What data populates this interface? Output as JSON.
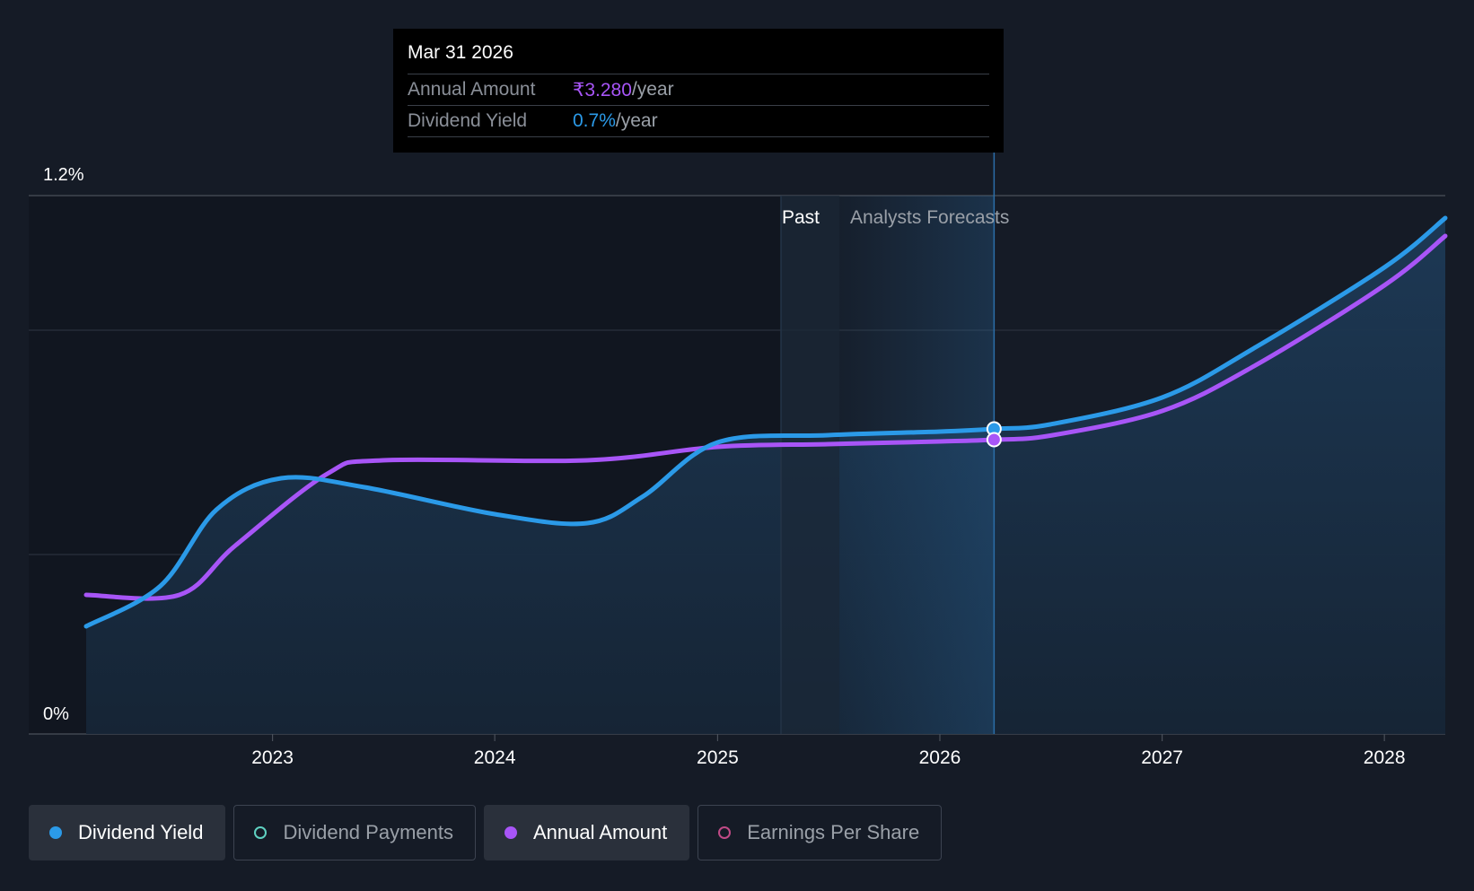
{
  "chart_data": {
    "type": "line",
    "ylim": [
      0,
      1.2
    ],
    "xlim": [
      "2022-03-01",
      "2028-04-10"
    ],
    "y_tick_labels": [
      "1.2%",
      "0%"
    ],
    "x_ticks": [
      "2023",
      "2024",
      "2025",
      "2026",
      "2027",
      "2028"
    ],
    "section_labels": {
      "past": "Past",
      "forecast": "Analysts Forecasts"
    },
    "past_end": "2025-07-20",
    "series": [
      {
        "name": "Dividend Yield",
        "color": "#2b9ae8",
        "points": [
          [
            "2022-03-01",
            0.24
          ],
          [
            "2022-07-01",
            0.33
          ],
          [
            "2022-10-01",
            0.5
          ],
          [
            "2023-01-15",
            0.57
          ],
          [
            "2023-06-01",
            0.55
          ],
          [
            "2024-01-01",
            0.49
          ],
          [
            "2024-06-01",
            0.47
          ],
          [
            "2024-09-01",
            0.53
          ],
          [
            "2025-01-01",
            0.65
          ],
          [
            "2025-07-01",
            0.666
          ],
          [
            "2026-01-01",
            0.674
          ],
          [
            "2026-03-31",
            0.68
          ],
          [
            "2026-07-01",
            0.69
          ],
          [
            "2027-01-01",
            0.75
          ],
          [
            "2027-06-01",
            0.86
          ],
          [
            "2028-01-01",
            1.04
          ],
          [
            "2028-04-10",
            1.15
          ]
        ]
      },
      {
        "name": "Annual Amount",
        "color": "#a855f7",
        "points": [
          [
            "2022-03-01",
            0.31
          ],
          [
            "2022-08-01",
            0.31
          ],
          [
            "2022-11-01",
            0.42
          ],
          [
            "2023-04-01",
            0.58
          ],
          [
            "2023-07-01",
            0.61
          ],
          [
            "2024-06-01",
            0.61
          ],
          [
            "2025-01-01",
            0.64
          ],
          [
            "2025-07-01",
            0.646
          ],
          [
            "2026-01-01",
            0.652
          ],
          [
            "2026-03-31",
            0.656
          ],
          [
            "2026-07-01",
            0.665
          ],
          [
            "2027-01-01",
            0.72
          ],
          [
            "2027-06-01",
            0.82
          ],
          [
            "2028-01-01",
            1.0
          ],
          [
            "2028-04-10",
            1.11
          ]
        ]
      }
    ],
    "highlight_date": "2026-03-31"
  },
  "tooltip": {
    "date": "Mar 31 2026",
    "rows": [
      {
        "label": "Annual Amount",
        "value": "₹3.280",
        "unit": "/year"
      },
      {
        "label": "Dividend Yield",
        "value": "0.7%",
        "unit": "/year"
      }
    ]
  },
  "legend": [
    {
      "label": "Dividend Yield",
      "active": true
    },
    {
      "label": "Dividend Payments",
      "active": false
    },
    {
      "label": "Annual Amount",
      "active": true
    },
    {
      "label": "Earnings Per Share",
      "active": false
    }
  ],
  "colors": {
    "background": "#151b26",
    "yield": "#2b9ae8",
    "amount": "#a855f7",
    "payments": "#5fd1c1",
    "eps": "#c04a86"
  }
}
